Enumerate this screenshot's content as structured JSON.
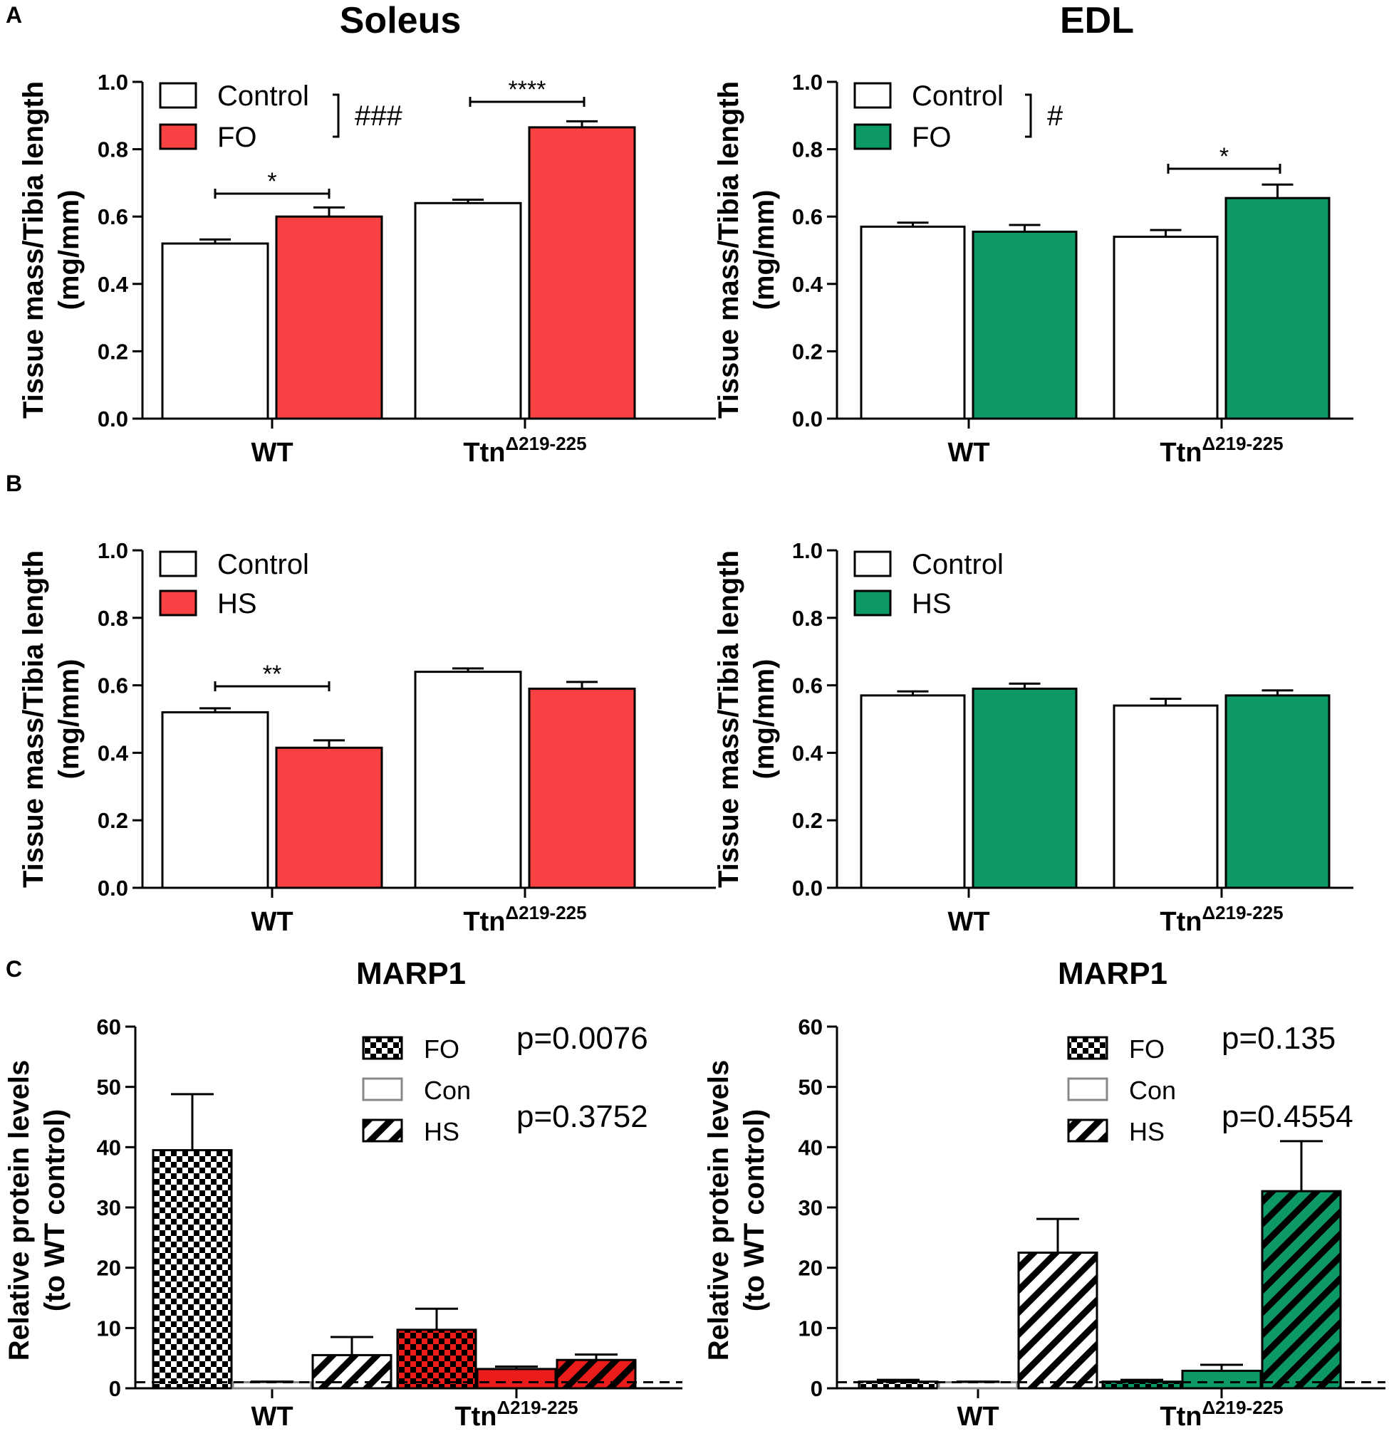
{
  "panel_labels": [
    "A",
    "B",
    "C"
  ],
  "colors": {
    "soleus": "#f94144",
    "edl": "#0c9966",
    "marp_soleus": "#ea1c1c",
    "con": "#ffffff"
  },
  "chart_data": [
    {
      "id": "A-soleus",
      "type": "bar",
      "panel": "A",
      "title": "Soleus",
      "ylabel": [
        "Tissue mass/Tibia length",
        "(mg/mm)"
      ],
      "ylim": [
        0,
        1.0
      ],
      "yticks": [
        "0.0",
        "0.2",
        "0.4",
        "0.6",
        "0.8",
        "1.0"
      ],
      "categories": [
        {
          "base": "WT",
          "sup": ""
        },
        {
          "base": "Ttn",
          "sup": "Δ219-225"
        }
      ],
      "series": [
        {
          "name": "Control",
          "color": "#ffffff",
          "values": [
            0.52,
            0.64
          ],
          "errors": [
            0.012,
            0.01
          ]
        },
        {
          "name": "FO",
          "color": "#f94144",
          "values": [
            0.6,
            0.865
          ],
          "errors": [
            0.027,
            0.018
          ]
        }
      ],
      "legend_annotation": "###",
      "annotations": [
        {
          "text": "*",
          "category": 0
        },
        {
          "text": "****",
          "category": 1
        }
      ]
    },
    {
      "id": "A-edl",
      "type": "bar",
      "panel": "A",
      "title": "EDL",
      "ylabel": [
        "Tissue mass/Tibia length",
        "(mg/mm)"
      ],
      "ylim": [
        0,
        1.0
      ],
      "yticks": [
        "0.0",
        "0.2",
        "0.4",
        "0.6",
        "0.8",
        "1.0"
      ],
      "categories": [
        {
          "base": "WT",
          "sup": ""
        },
        {
          "base": "Ttn",
          "sup": "Δ219-225"
        }
      ],
      "series": [
        {
          "name": "Control",
          "color": "#ffffff",
          "values": [
            0.57,
            0.54
          ],
          "errors": [
            0.012,
            0.02
          ]
        },
        {
          "name": "FO",
          "color": "#0c9966",
          "values": [
            0.555,
            0.655
          ],
          "errors": [
            0.02,
            0.04
          ]
        }
      ],
      "legend_annotation": "#",
      "annotations": [
        {
          "text": "*",
          "category": 1
        }
      ]
    },
    {
      "id": "B-soleus",
      "type": "bar",
      "panel": "B",
      "ylabel": [
        "Tissue mass/Tibia length",
        "(mg/mm)"
      ],
      "ylim": [
        0,
        1.0
      ],
      "yticks": [
        "0.0",
        "0.2",
        "0.4",
        "0.6",
        "0.8",
        "1.0"
      ],
      "categories": [
        {
          "base": "WT",
          "sup": ""
        },
        {
          "base": "Ttn",
          "sup": "Δ219-225"
        }
      ],
      "series": [
        {
          "name": "Control",
          "color": "#ffffff",
          "values": [
            0.52,
            0.64
          ],
          "errors": [
            0.012,
            0.01
          ]
        },
        {
          "name": "HS",
          "color": "#f94144",
          "values": [
            0.415,
            0.59
          ],
          "errors": [
            0.022,
            0.02
          ]
        }
      ],
      "legend_annotation": "",
      "annotations": [
        {
          "text": "**",
          "category": 0
        }
      ]
    },
    {
      "id": "B-edl",
      "type": "bar",
      "panel": "B",
      "ylabel": [
        "Tissue mass/Tibia length",
        "(mg/mm)"
      ],
      "ylim": [
        0,
        1.0
      ],
      "yticks": [
        "0.0",
        "0.2",
        "0.4",
        "0.6",
        "0.8",
        "1.0"
      ],
      "categories": [
        {
          "base": "WT",
          "sup": ""
        },
        {
          "base": "Ttn",
          "sup": "Δ219-225"
        }
      ],
      "series": [
        {
          "name": "Control",
          "color": "#ffffff",
          "values": [
            0.57,
            0.54
          ],
          "errors": [
            0.012,
            0.02
          ]
        },
        {
          "name": "HS",
          "color": "#0c9966",
          "values": [
            0.59,
            0.57
          ],
          "errors": [
            0.015,
            0.015
          ]
        }
      ],
      "legend_annotation": "",
      "annotations": []
    },
    {
      "id": "C-soleus",
      "type": "bar",
      "panel": "C",
      "title": "MARP1",
      "ylabel": [
        "Relative protein levels",
        "(to WT control)"
      ],
      "ylim": [
        0,
        60
      ],
      "yticks": [
        "0",
        "10",
        "20",
        "30",
        "40",
        "50",
        "60"
      ],
      "categories": [
        {
          "base": "WT",
          "sup": ""
        },
        {
          "base": "Ttn",
          "sup": "Δ219-225"
        }
      ],
      "series": [
        {
          "name": "FO",
          "pattern": "checker",
          "values": [
            39.5,
            9.7
          ],
          "errors": [
            9.3,
            3.5
          ]
        },
        {
          "name": "Con",
          "pattern": "none",
          "values": [
            1.0,
            3.2
          ],
          "errors": [
            0.1,
            0.4
          ]
        },
        {
          "name": "HS",
          "pattern": "stripes",
          "values": [
            5.5,
            4.7
          ],
          "errors": [
            3.0,
            0.9
          ]
        }
      ],
      "wt_color": "#ffffff",
      "mut_color": "#ea1c1c",
      "reference_line": 1,
      "pvalues": [
        "p=0.0076",
        "p=0.3752"
      ]
    },
    {
      "id": "C-edl",
      "type": "bar",
      "panel": "C",
      "title": "MARP1",
      "ylabel": [
        "Relative protein levels",
        "(to WT control)"
      ],
      "ylim": [
        0,
        60
      ],
      "yticks": [
        "0",
        "10",
        "20",
        "30",
        "40",
        "50",
        "60"
      ],
      "categories": [
        {
          "base": "WT",
          "sup": ""
        },
        {
          "base": "Ttn",
          "sup": "Δ219-225"
        }
      ],
      "series": [
        {
          "name": "FO",
          "pattern": "checker",
          "values": [
            1.1,
            1.1
          ],
          "errors": [
            0.3,
            0.3
          ]
        },
        {
          "name": "Con",
          "pattern": "none",
          "values": [
            1.0,
            2.9
          ],
          "errors": [
            0.1,
            1.0
          ]
        },
        {
          "name": "HS",
          "pattern": "stripes",
          "values": [
            22.5,
            32.7
          ],
          "errors": [
            5.6,
            8.3
          ]
        }
      ],
      "wt_color": "#ffffff",
      "mut_color": "#0c9966",
      "reference_line": 1,
      "pvalues": [
        "p=0.135",
        "p=0.4554"
      ]
    }
  ]
}
